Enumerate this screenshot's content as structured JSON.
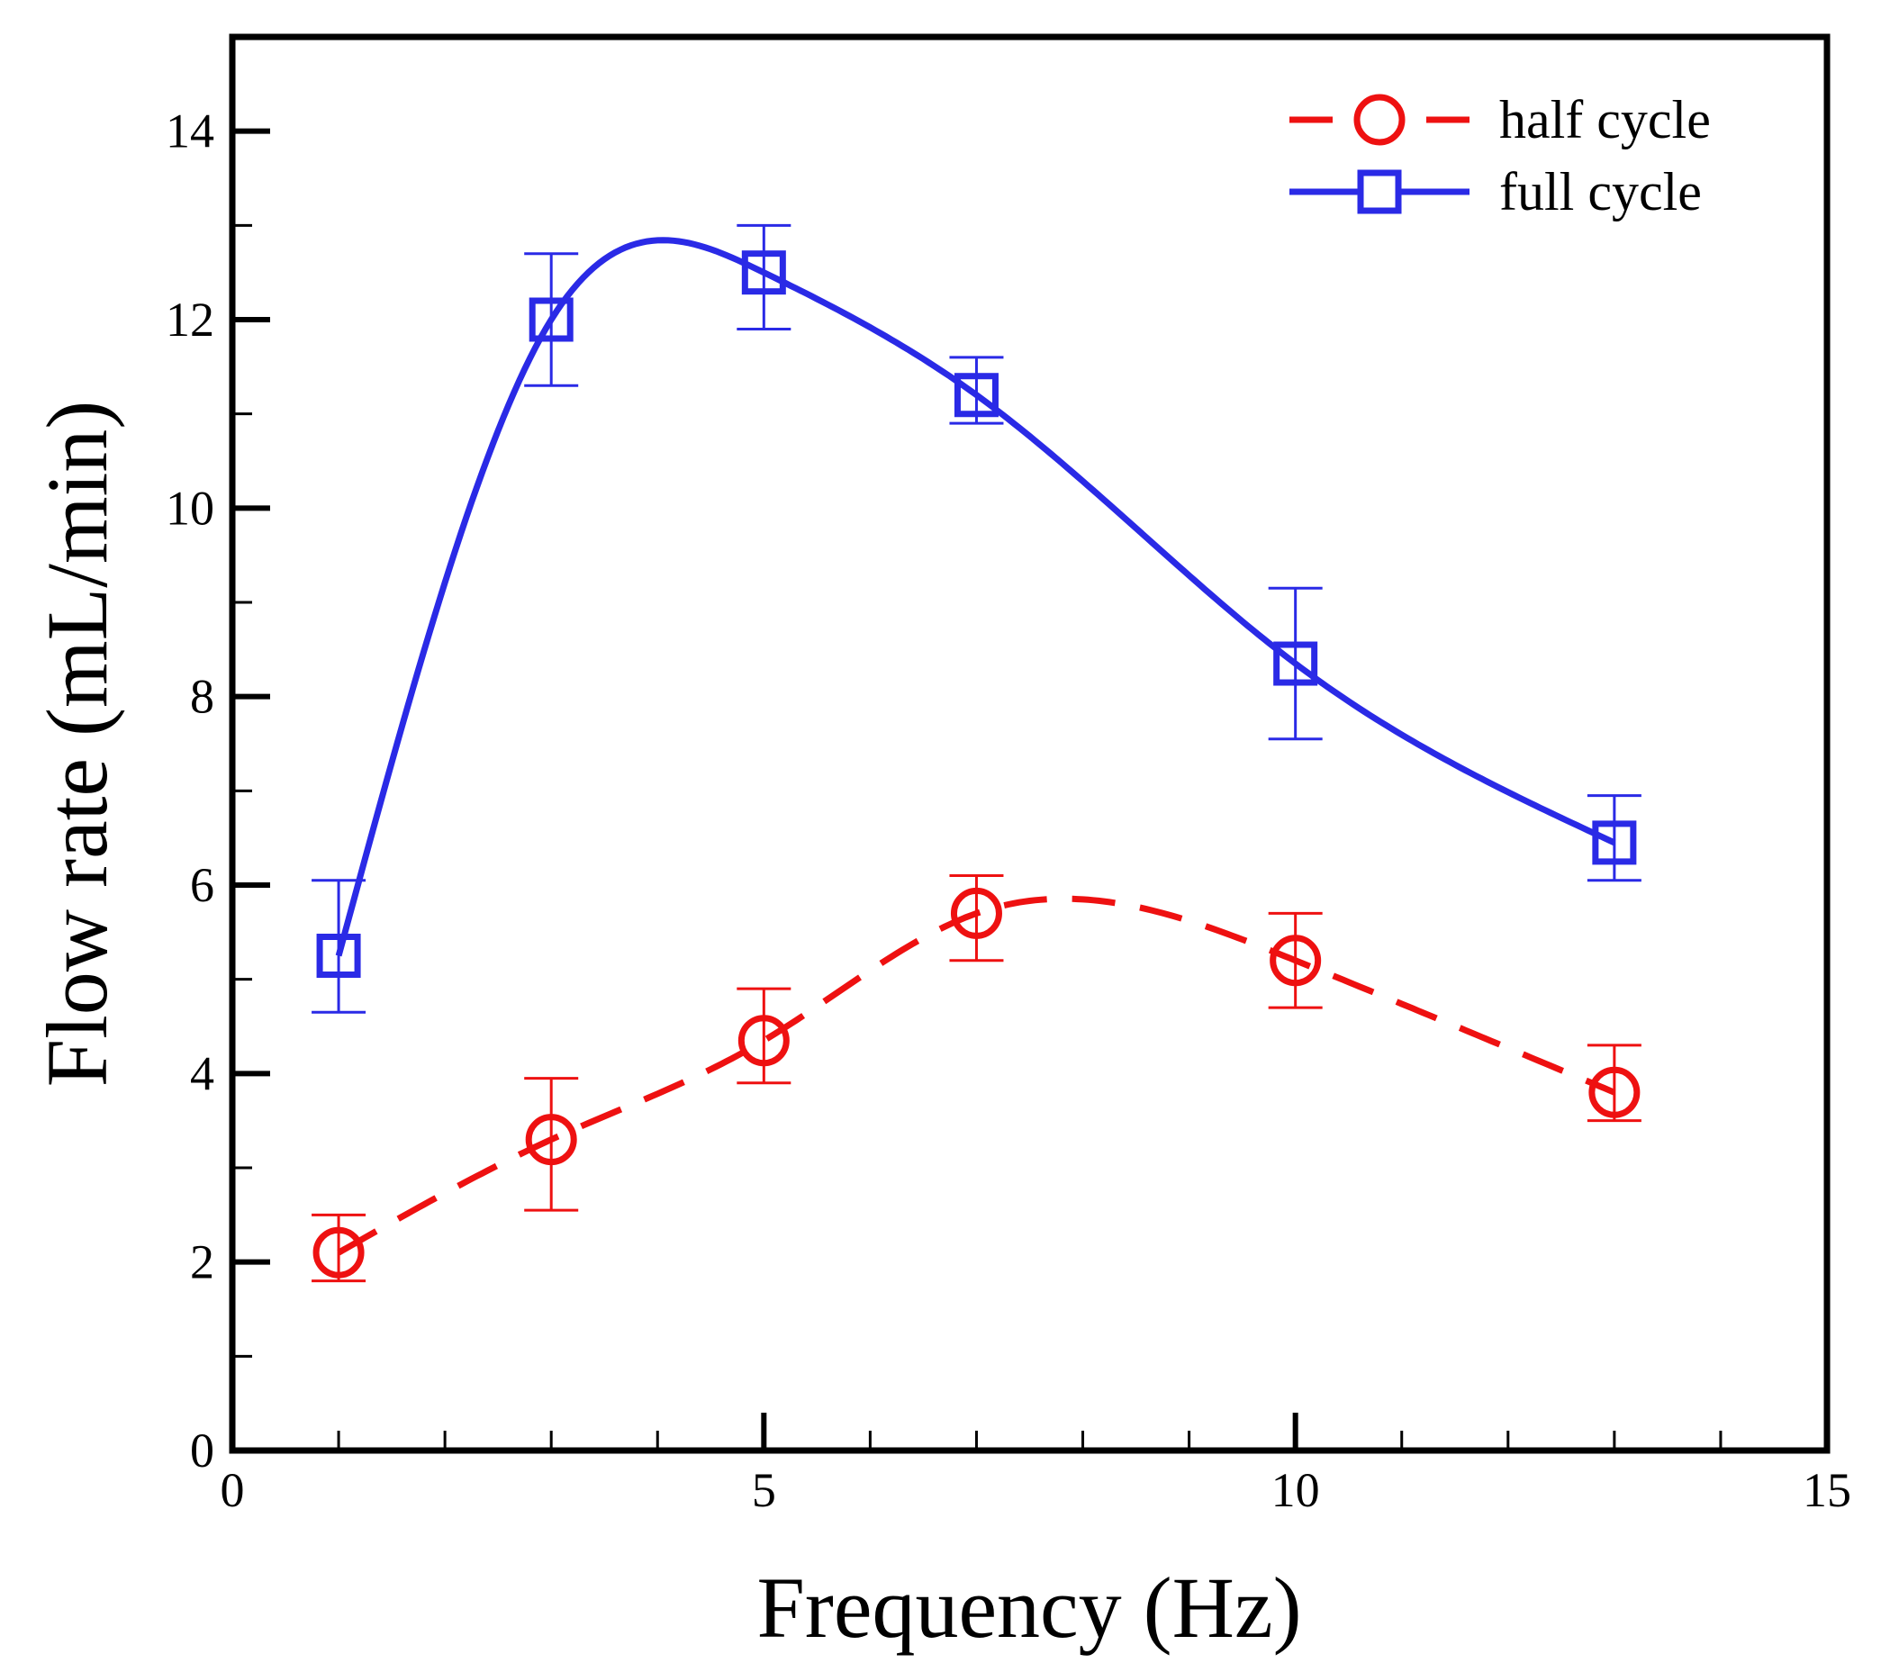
{
  "chart_data": {
    "type": "line",
    "title": "",
    "xlabel": "Frequency (Hz)",
    "ylabel": "Flow rate (mL/min)",
    "xlim": [
      0,
      15
    ],
    "ylim": [
      0,
      15
    ],
    "x_ticks": [
      0,
      5,
      10,
      15
    ],
    "x_minor_ticks": [
      1,
      2,
      3,
      4,
      6,
      7,
      8,
      9,
      11,
      12,
      13,
      14
    ],
    "y_ticks": [
      0,
      2,
      4,
      6,
      8,
      10,
      12,
      14
    ],
    "y_minor_ticks": [
      1,
      3,
      5,
      7,
      9,
      11,
      13
    ],
    "grid": false,
    "legend_position": "top-right",
    "series": [
      {
        "name": "half cycle",
        "color": "#ee1111",
        "line_style": "dashed",
        "marker": "circle",
        "points": [
          {
            "x": 1,
            "y": 2.1,
            "err_low": 1.8,
            "err_high": 2.5
          },
          {
            "x": 3,
            "y": 3.3,
            "err_low": 2.55,
            "err_high": 3.95
          },
          {
            "x": 5,
            "y": 4.35,
            "err_low": 3.9,
            "err_high": 4.9
          },
          {
            "x": 7,
            "y": 5.7,
            "err_low": 5.2,
            "err_high": 6.1
          },
          {
            "x": 10,
            "y": 5.2,
            "err_low": 4.7,
            "err_high": 5.7
          },
          {
            "x": 13,
            "y": 3.8,
            "err_low": 3.5,
            "err_high": 4.3
          }
        ]
      },
      {
        "name": "full cycle",
        "color": "#2a2ae6",
        "line_style": "solid",
        "marker": "square",
        "points": [
          {
            "x": 1,
            "y": 5.25,
            "err_low": 4.65,
            "err_high": 6.05
          },
          {
            "x": 3,
            "y": 12.0,
            "err_low": 11.3,
            "err_high": 12.7
          },
          {
            "x": 5,
            "y": 12.5,
            "err_low": 11.9,
            "err_high": 13.0
          },
          {
            "x": 7,
            "y": 11.2,
            "err_low": 10.9,
            "err_high": 11.6
          },
          {
            "x": 10,
            "y": 8.35,
            "err_low": 7.55,
            "err_high": 9.15
          },
          {
            "x": 13,
            "y": 6.45,
            "err_low": 6.05,
            "err_high": 6.95
          }
        ]
      }
    ]
  }
}
